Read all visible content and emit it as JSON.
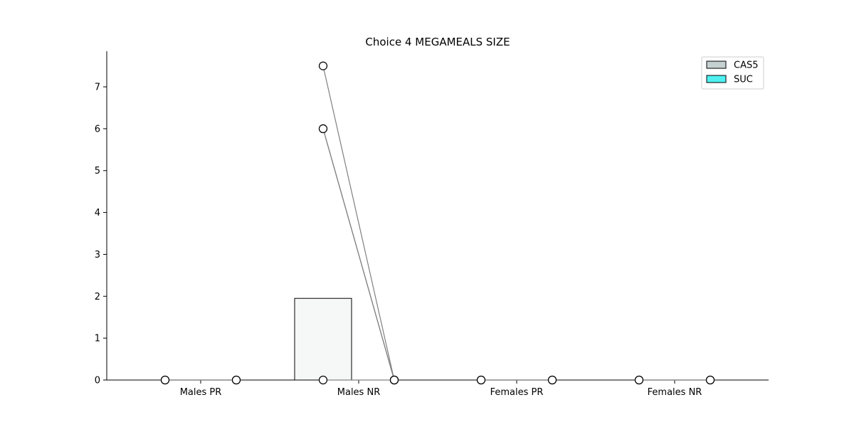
{
  "chart_data": {
    "type": "bar",
    "title": "Choice  4 MEGAMEALS SIZE",
    "xlabel": "",
    "ylabel": "",
    "categories": [
      "Males PR",
      "Males NR",
      "Females PR",
      "Females NR"
    ],
    "ylim": [
      0,
      7.85
    ],
    "yticks": [
      0,
      1,
      2,
      3,
      4,
      5,
      6,
      7
    ],
    "grid": false,
    "legend": {
      "placement": "top-right"
    },
    "series": [
      {
        "name": "CAS5",
        "color": "#c5d1d0",
        "bar_fill": "#f6f8f7",
        "values": [
          0,
          1.95,
          0,
          0
        ]
      },
      {
        "name": "SUC",
        "color": "#4ff0f0",
        "bar_fill": "#4ff0f0",
        "values": [
          0,
          0,
          0,
          0
        ]
      }
    ],
    "individual_points": [
      {
        "category": "Males PR",
        "pairs": [
          [
            0,
            0
          ],
          [
            0,
            0
          ]
        ]
      },
      {
        "category": "Males NR",
        "pairs": [
          [
            7.5,
            0
          ],
          [
            6,
            0
          ],
          [
            6,
            0
          ],
          [
            0,
            0
          ]
        ]
      },
      {
        "category": "Females PR",
        "pairs": [
          [
            0,
            0
          ],
          [
            0,
            0
          ]
        ]
      },
      {
        "category": "Females NR",
        "pairs": [
          [
            0,
            0
          ],
          [
            0,
            0
          ]
        ]
      }
    ]
  }
}
